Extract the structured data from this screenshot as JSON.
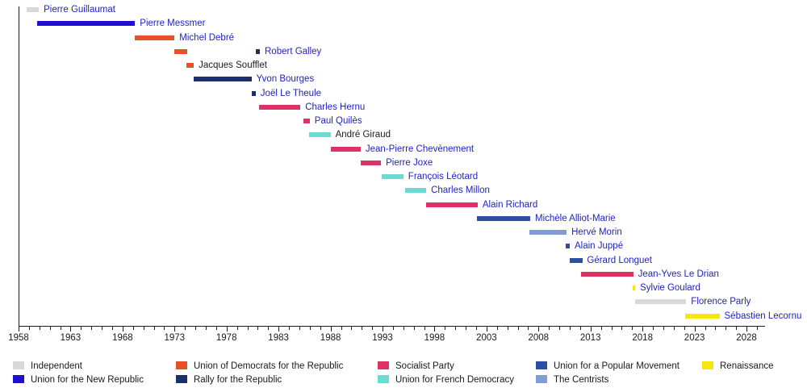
{
  "chart_data": {
    "type": "timeline",
    "description": "Gantt-style timeline of French defence ministers' terms, colored by political party",
    "axis": {
      "unit": "year",
      "start": 1958,
      "end": 2029.8,
      "major_ticks": [
        1958,
        1963,
        1968,
        1973,
        1978,
        1983,
        1988,
        1993,
        1998,
        2003,
        2008,
        2013,
        2018,
        2023,
        2028
      ],
      "minor_tick_interval": 1,
      "minor_tick_last": 2029
    },
    "colors": {
      "link_text": "#2222c4",
      "plain_text": "#1a1a1a",
      "axis": "#1a1a1a"
    },
    "parties": {
      "independent": {
        "label": "Independent",
        "color": "#d9d9d9"
      },
      "unr": {
        "label": "Union for the New Republic",
        "color": "#1f0ed1"
      },
      "udr": {
        "label": "Union of Democrats for the Republic",
        "color": "#e8502a"
      },
      "rpr": {
        "label": "Rally for the Republic",
        "color": "#1d2f69"
      },
      "ps": {
        "label": "Socialist Party",
        "color": "#dc3266"
      },
      "udf": {
        "label": "Union for French Democracy",
        "color": "#6ddbd1"
      },
      "ump": {
        "label": "Union for a Popular Movement",
        "color": "#2b4fa2"
      },
      "centrists": {
        "label": "The Centrists",
        "color": "#7f9cd4"
      },
      "renaissance": {
        "label": "Renaissance",
        "color": "#f5e70e"
      }
    },
    "legend_order": [
      "independent",
      "unr",
      "udr",
      "rpr",
      "ps",
      "udf",
      "ump",
      "centrists",
      "renaissance"
    ],
    "ministers": [
      {
        "name": "Pierre Guillaumat",
        "link": true,
        "terms": [
          {
            "start": 1958.8,
            "end": 1959.95,
            "party": "independent"
          }
        ]
      },
      {
        "name": "Pierre Messmer",
        "link": true,
        "terms": [
          {
            "start": 1959.8,
            "end": 1969.2,
            "party": "unr"
          }
        ]
      },
      {
        "name": "Michel Debré",
        "link": true,
        "terms": [
          {
            "start": 1969.2,
            "end": 1973.0,
            "party": "udr"
          }
        ]
      },
      {
        "name": "Robert Galley",
        "link": true,
        "terms": [
          {
            "start": 1972.95,
            "end": 1974.25,
            "party": "udr"
          },
          {
            "start": 1980.8,
            "end": 1981.2,
            "party": "rpr"
          }
        ]
      },
      {
        "name": "Jacques Soufflet",
        "link": false,
        "terms": [
          {
            "start": 1974.1,
            "end": 1974.85,
            "party": "udr"
          }
        ]
      },
      {
        "name": "Yvon Bourges",
        "link": true,
        "terms": [
          {
            "start": 1974.85,
            "end": 1980.4,
            "party": "rpr"
          }
        ]
      },
      {
        "name": "Joël Le Theule",
        "link": true,
        "terms": [
          {
            "start": 1980.4,
            "end": 1980.8,
            "party": "rpr"
          }
        ]
      },
      {
        "name": "Charles Hernu",
        "link": true,
        "terms": [
          {
            "start": 1981.15,
            "end": 1985.1,
            "party": "ps"
          }
        ]
      },
      {
        "name": "Paul Quilès",
        "link": true,
        "terms": [
          {
            "start": 1985.4,
            "end": 1986.0,
            "party": "ps"
          }
        ]
      },
      {
        "name": "André Giraud",
        "link": false,
        "terms": [
          {
            "start": 1985.95,
            "end": 1988.0,
            "party": "udf"
          }
        ]
      },
      {
        "name": "Jean-Pierre Chevènement",
        "link": true,
        "terms": [
          {
            "start": 1988.0,
            "end": 1990.9,
            "party": "ps"
          }
        ]
      },
      {
        "name": "Pierre Joxe",
        "link": true,
        "terms": [
          {
            "start": 1990.9,
            "end": 1992.85,
            "party": "ps"
          }
        ]
      },
      {
        "name": "François Léotard",
        "link": true,
        "terms": [
          {
            "start": 1992.9,
            "end": 1995.0,
            "party": "udf"
          }
        ]
      },
      {
        "name": "Charles Millon",
        "link": true,
        "terms": [
          {
            "start": 1995.2,
            "end": 1997.2,
            "party": "udf"
          }
        ]
      },
      {
        "name": "Alain Richard",
        "link": true,
        "terms": [
          {
            "start": 1997.2,
            "end": 2002.15,
            "party": "ps"
          }
        ]
      },
      {
        "name": "Michèle Alliot-Marie",
        "link": true,
        "terms": [
          {
            "start": 2002.1,
            "end": 2007.2,
            "party": "ump"
          }
        ]
      },
      {
        "name": "Hervé Morin",
        "link": true,
        "terms": [
          {
            "start": 2007.1,
            "end": 2010.7,
            "party": "centrists"
          }
        ]
      },
      {
        "name": "Alain Juppé",
        "link": true,
        "terms": [
          {
            "start": 2010.65,
            "end": 2011.0,
            "party": "ump"
          }
        ]
      },
      {
        "name": "Gérard Longuet",
        "link": true,
        "terms": [
          {
            "start": 2011.0,
            "end": 2012.2,
            "party": "ump"
          }
        ]
      },
      {
        "name": "Jean-Yves Le Drian",
        "link": true,
        "terms": [
          {
            "start": 2012.05,
            "end": 2017.1,
            "party": "ps"
          }
        ]
      },
      {
        "name": "Sylvie Goulard",
        "link": true,
        "terms": [
          {
            "start": 2017.05,
            "end": 2017.3,
            "party": "renaissance"
          }
        ]
      },
      {
        "name": "Florence Parly",
        "link": true,
        "terms": [
          {
            "start": 2017.3,
            "end": 2022.2,
            "party": "independent"
          }
        ]
      },
      {
        "name": "Sébastien Lecornu",
        "link": true,
        "terms": [
          {
            "start": 2022.1,
            "end": 2025.4,
            "party": "renaissance"
          }
        ]
      }
    ]
  }
}
